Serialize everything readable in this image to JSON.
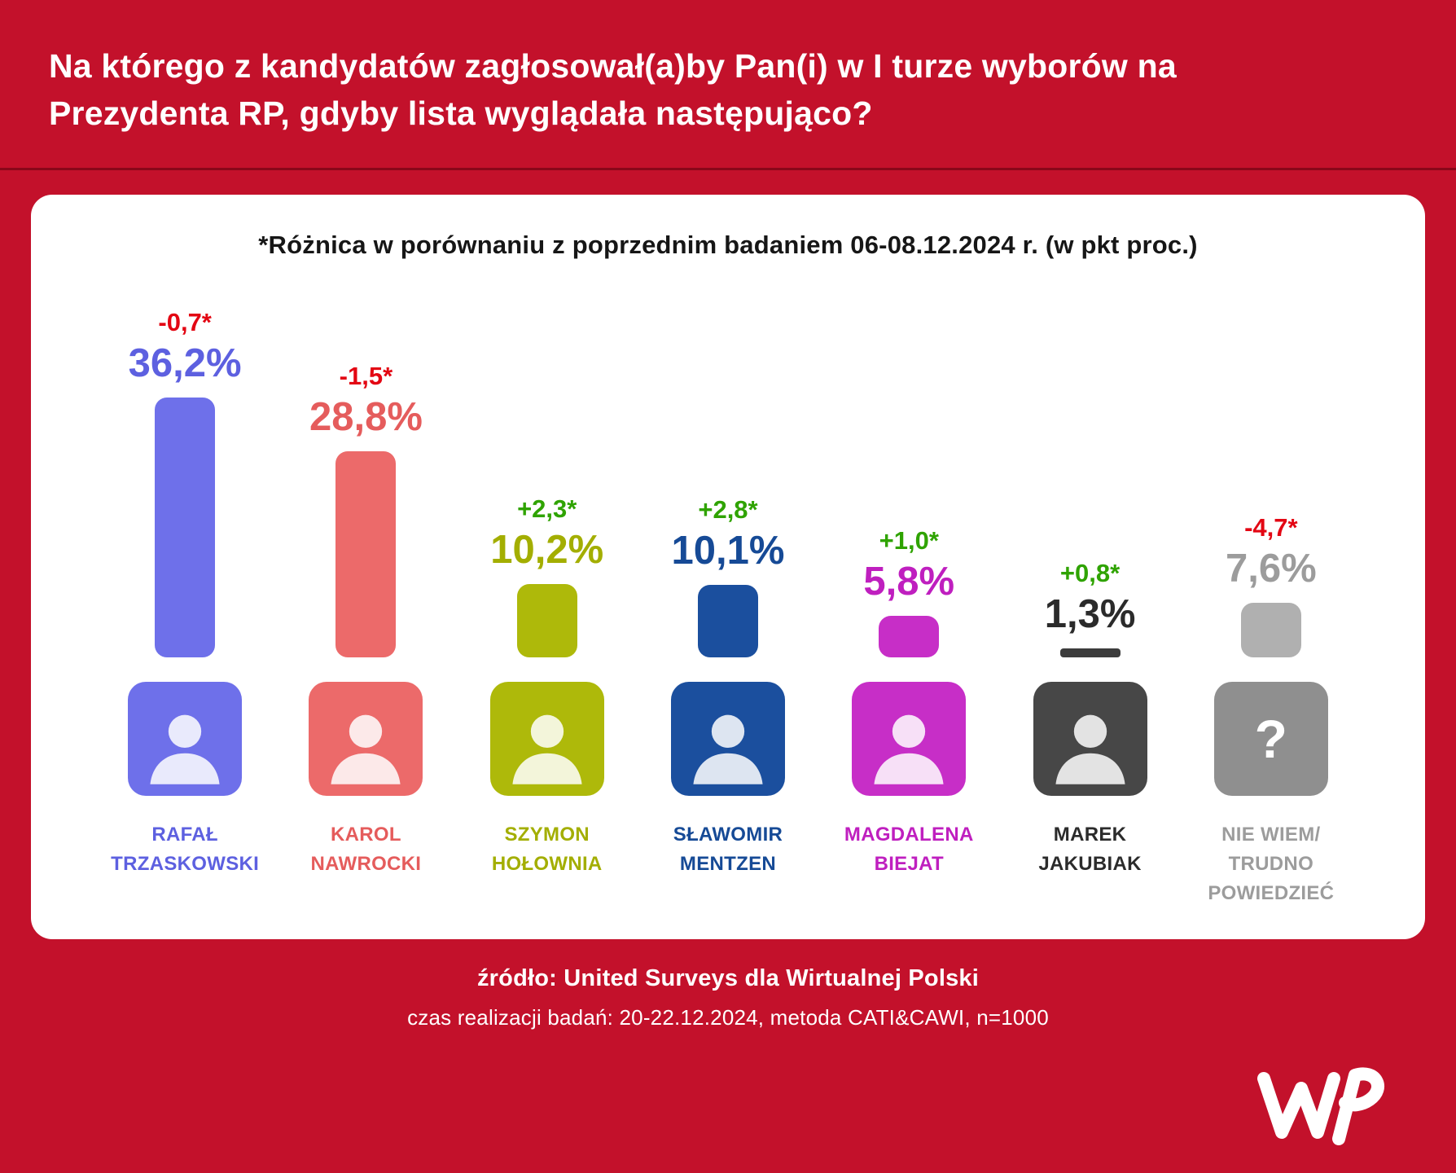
{
  "title": "Na którego z kandydatów zagłosował(a)by Pan(i) w I turze wyborów na Prezydenta RP, gdyby lista wyglądała następująco?",
  "subtitle": "*Różnica w porównaniu z poprzednim badaniem 06-08.12.2024 r. (w pkt proc.)",
  "colors": {
    "background": "#c3112b",
    "card": "#ffffff",
    "negative": "#e30613",
    "positive": "#2fa300"
  },
  "chart_data": {
    "type": "bar",
    "title": "Na którego z kandydatów zagłosował(a)by Pan(i) w I turze wyborów na Prezydenta RP, gdyby lista wyglądała następująco?",
    "note": "*Różnica w porównaniu z poprzednim badaniem 06-08.12.2024 r. (w pkt proc.)",
    "unit": "%",
    "categories": [
      "Rafał Trzaskowski",
      "Karol Nawrocki",
      "Szymon Hołownia",
      "Sławomir Mentzen",
      "Magdalena Biejat",
      "Marek Jakubiak",
      "Nie wiem/trudno powiedzieć"
    ],
    "values": [
      36.2,
      28.8,
      10.2,
      10.1,
      5.8,
      1.3,
      7.6
    ],
    "value_labels": [
      "36,2%",
      "28,8%",
      "10,2%",
      "10,1%",
      "5,8%",
      "1,3%",
      "7,6%"
    ],
    "change_vs_previous_pp": [
      -0.7,
      -1.5,
      2.3,
      2.8,
      1.0,
      0.8,
      -4.7
    ],
    "change_labels": [
      "-0,7*",
      "-1,5*",
      "+2,3*",
      "+2,8*",
      "+1,0*",
      "+0,8*",
      "-4,7*"
    ],
    "bar_colors": [
      "#6e70ea",
      "#ec6a6a",
      "#aeb90a",
      "#1b4f9e",
      "#c72ec7",
      "#3c3c3c",
      "#b0b0b0"
    ],
    "ylim": [
      0,
      40
    ],
    "grid": false,
    "legend": "none"
  },
  "candidates": [
    {
      "name": "RAFAŁ\nTRZASKOWSKI",
      "value": 36.2,
      "value_label": "36,2%",
      "change": "-0,7*",
      "change_color": "#e30613",
      "color": "#5d60e0",
      "bar_color": "#6e70ea",
      "photo_bg": "#6e70ea",
      "photo_glyph": ""
    },
    {
      "name": "KAROL\nNAWROCKI",
      "value": 28.8,
      "value_label": "28,8%",
      "change": "-1,5*",
      "change_color": "#e30613",
      "color": "#e55c5c",
      "bar_color": "#ec6a6a",
      "photo_bg": "#ec6a6a",
      "photo_glyph": ""
    },
    {
      "name": "SZYMON\nHOŁOWNIA",
      "value": 10.2,
      "value_label": "10,2%",
      "change": "+2,3*",
      "change_color": "#2fa300",
      "color": "#a3ae00",
      "bar_color": "#aeb90a",
      "photo_bg": "#aeb90a",
      "photo_glyph": ""
    },
    {
      "name": "SŁAWOMIR\nMENTZEN",
      "value": 10.1,
      "value_label": "10,1%",
      "change": "+2,8*",
      "change_color": "#2fa300",
      "color": "#164a96",
      "bar_color": "#1b4f9e",
      "photo_bg": "#1b4f9e",
      "photo_glyph": ""
    },
    {
      "name": "MAGDALENA\nBIEJAT",
      "value": 5.8,
      "value_label": "5,8%",
      "change": "+1,0*",
      "change_color": "#2fa300",
      "color": "#bf1fbf",
      "bar_color": "#c72ec7",
      "photo_bg": "#c72ec7",
      "photo_glyph": ""
    },
    {
      "name": "MAREK\nJAKUBIAK",
      "value": 1.3,
      "value_label": "1,3%",
      "change": "+0,8*",
      "change_color": "#2fa300",
      "color": "#2b2b2b",
      "bar_color": "#3c3c3c",
      "photo_bg": "#474747",
      "photo_glyph": ""
    },
    {
      "name": "NIE WIEM/\nTRUDNO\nPOWIEDZIEĆ",
      "value": 7.6,
      "value_label": "7,6%",
      "change": "-4,7*",
      "change_color": "#e30613",
      "color": "#9c9c9c",
      "bar_color": "#b0b0b0",
      "photo_bg": "#8f8f8f",
      "photo_glyph": "?"
    }
  ],
  "footer": {
    "source": "źródło: United Surveys dla Wirtualnej Polski",
    "details": "czas realizacji badań: 20-22.12.2024, metoda CATI&CAWI, n=1000",
    "logo_icon": "wp-logo"
  }
}
